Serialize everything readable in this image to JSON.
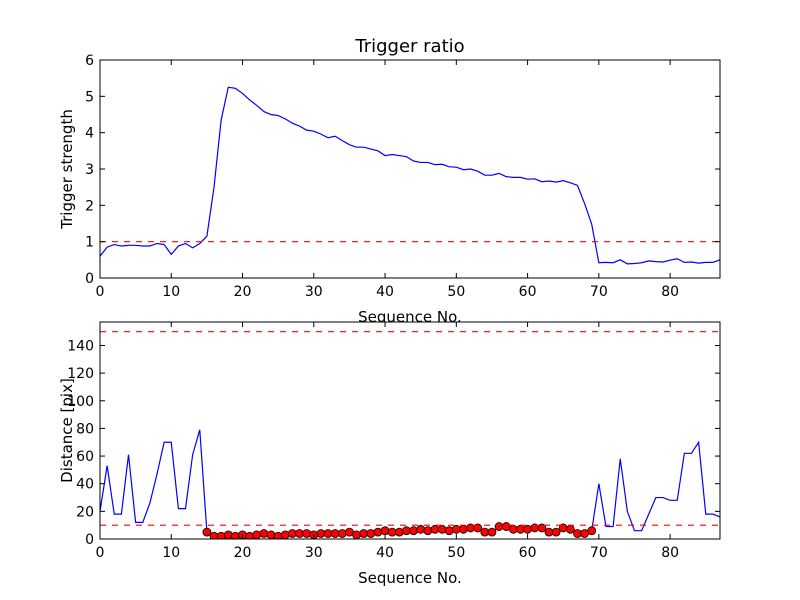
{
  "chart_data": [
    {
      "type": "line",
      "title": "Trigger ratio",
      "xlabel": "Sequence No.",
      "ylabel": "Trigger strength",
      "xlim": [
        0,
        87
      ],
      "ylim": [
        0,
        6
      ],
      "xticks": [
        0,
        10,
        20,
        30,
        40,
        50,
        60,
        70,
        80
      ],
      "yticks": [
        0,
        1,
        2,
        3,
        4,
        5,
        6
      ],
      "grid": false,
      "series": [
        {
          "style": "solid",
          "color": "#0000ff",
          "x": [
            0,
            1,
            2,
            3,
            4,
            5,
            6,
            7,
            8,
            9,
            10,
            11,
            12,
            13,
            14,
            15,
            16,
            17,
            18,
            19,
            20,
            21,
            22,
            23,
            24,
            25,
            26,
            27,
            28,
            29,
            30,
            31,
            32,
            33,
            34,
            35,
            36,
            37,
            38,
            39,
            40,
            41,
            42,
            43,
            44,
            45,
            46,
            47,
            48,
            49,
            50,
            51,
            52,
            53,
            54,
            55,
            56,
            57,
            58,
            59,
            60,
            61,
            62,
            63,
            64,
            65,
            66,
            67,
            68,
            69,
            70,
            71,
            72,
            73,
            74,
            75,
            76,
            77,
            78,
            79,
            80,
            81,
            82,
            83,
            84,
            85,
            86,
            87
          ],
          "y": [
            0.6,
            0.85,
            0.92,
            0.88,
            0.9,
            0.9,
            0.88,
            0.88,
            0.95,
            0.92,
            0.65,
            0.88,
            0.95,
            0.83,
            0.95,
            1.15,
            2.5,
            4.35,
            5.25,
            5.22,
            5.08,
            4.9,
            4.75,
            4.58,
            4.5,
            4.47,
            4.38,
            4.26,
            4.18,
            4.07,
            4.04,
            3.96,
            3.86,
            3.9,
            3.78,
            3.67,
            3.6,
            3.6,
            3.55,
            3.5,
            3.37,
            3.4,
            3.37,
            3.34,
            3.22,
            3.18,
            3.18,
            3.12,
            3.13,
            3.06,
            3.05,
            2.98,
            3.0,
            2.94,
            2.83,
            2.83,
            2.88,
            2.79,
            2.77,
            2.77,
            2.72,
            2.73,
            2.65,
            2.67,
            2.64,
            2.68,
            2.62,
            2.55,
            2.05,
            1.48,
            0.42,
            0.43,
            0.42,
            0.5,
            0.39,
            0.4,
            0.42,
            0.47,
            0.45,
            0.44,
            0.49,
            0.53,
            0.43,
            0.44,
            0.41,
            0.43,
            0.43,
            0.5
          ]
        },
        {
          "style": "dashed",
          "color": "#ff0000",
          "x": [
            0,
            87
          ],
          "y": [
            1,
            1
          ]
        }
      ]
    },
    {
      "type": "line",
      "title": "",
      "xlabel": "Sequence No.",
      "ylabel": "Distance [pix]",
      "xlim": [
        0,
        87
      ],
      "ylim": [
        0,
        157
      ],
      "xticks": [
        0,
        10,
        20,
        30,
        40,
        50,
        60,
        70,
        80
      ],
      "yticks": [
        0,
        20,
        40,
        60,
        80,
        100,
        120,
        140
      ],
      "grid": false,
      "series": [
        {
          "style": "solid",
          "color": "#0000ff",
          "x": [
            0,
            1,
            2,
            3,
            4,
            5,
            6,
            7,
            8,
            9,
            10,
            11,
            12,
            13,
            14,
            15,
            16,
            17,
            18,
            19,
            20,
            21,
            22,
            23,
            24,
            25,
            26,
            27,
            28,
            29,
            30,
            31,
            32,
            33,
            34,
            35,
            36,
            37,
            38,
            39,
            40,
            41,
            42,
            43,
            44,
            45,
            46,
            47,
            48,
            49,
            50,
            51,
            52,
            53,
            54,
            55,
            56,
            57,
            58,
            59,
            60,
            61,
            62,
            63,
            64,
            65,
            66,
            67,
            68,
            69,
            70,
            71,
            72,
            73,
            74,
            75,
            76,
            77,
            78,
            79,
            80,
            81,
            82,
            83,
            84,
            85,
            86,
            87
          ],
          "y": [
            20,
            53,
            18,
            18,
            61,
            12,
            12,
            26,
            47,
            70,
            70,
            22,
            22,
            61,
            79,
            5,
            2,
            2,
            3,
            2,
            3,
            2,
            3,
            4,
            3,
            2,
            3,
            4,
            4,
            4,
            3,
            4,
            4,
            4,
            4,
            5,
            3,
            4,
            4,
            5,
            6,
            5,
            5,
            6,
            6,
            7,
            6,
            7,
            7,
            6,
            7,
            7,
            8,
            8,
            5,
            5,
            9,
            9,
            7,
            7,
            7,
            8,
            8,
            5,
            5,
            8,
            7,
            4,
            4,
            6,
            40,
            9,
            9,
            58,
            20,
            6,
            6,
            18,
            30,
            30,
            28,
            28,
            62,
            62,
            70,
            18,
            18,
            16
          ]
        },
        {
          "style": "markers",
          "color": "#ff0000",
          "x": [
            15,
            16,
            17,
            18,
            19,
            20,
            21,
            22,
            23,
            24,
            25,
            26,
            27,
            28,
            29,
            30,
            31,
            32,
            33,
            34,
            35,
            36,
            37,
            38,
            39,
            40,
            41,
            42,
            43,
            44,
            45,
            46,
            47,
            48,
            49,
            50,
            51,
            52,
            53,
            54,
            55,
            56,
            57,
            58,
            59,
            60,
            61,
            62,
            63,
            64,
            65,
            66,
            67,
            68,
            69
          ],
          "y": [
            5,
            2,
            2,
            3,
            2,
            3,
            2,
            3,
            4,
            3,
            2,
            3,
            4,
            4,
            4,
            3,
            4,
            4,
            4,
            4,
            5,
            3,
            4,
            4,
            5,
            6,
            5,
            5,
            6,
            6,
            7,
            6,
            7,
            7,
            6,
            7,
            7,
            8,
            8,
            5,
            5,
            9,
            9,
            7,
            7,
            7,
            8,
            8,
            5,
            5,
            8,
            7,
            4,
            4,
            6
          ]
        },
        {
          "style": "dashed",
          "color": "#ff0000",
          "x": [
            0,
            87
          ],
          "y": [
            150,
            150
          ]
        },
        {
          "style": "dashed",
          "color": "#ff0000",
          "x": [
            0,
            87
          ],
          "y": [
            10,
            10
          ]
        }
      ]
    }
  ]
}
